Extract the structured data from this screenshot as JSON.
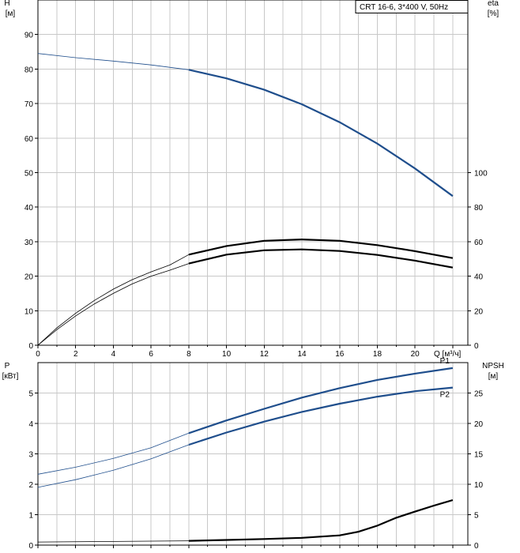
{
  "chart_data": [
    {
      "type": "line",
      "title": "CRT 16-6, 3*400 V, 50Hz",
      "xlabel": "Q [м³/ч]",
      "xlim": [
        0,
        22.8
      ],
      "x_ticks": [
        0,
        2,
        4,
        6,
        8,
        10,
        12,
        14,
        16,
        18,
        20
      ],
      "left_axis": {
        "label_line1": "H",
        "label_line2": "[м]",
        "ylim": [
          0,
          100
        ],
        "ticks": [
          0,
          10,
          20,
          30,
          40,
          50,
          60,
          70,
          80,
          90
        ]
      },
      "right_axis": {
        "label_line1": "eta",
        "label_line2": "[%]",
        "ylim": [
          0,
          200
        ],
        "ticks": [
          0,
          20,
          40,
          60,
          80,
          100
        ]
      },
      "grid": true,
      "series": [
        {
          "axis": "left",
          "color": "#1f4e8c",
          "points": [
            [
              0,
              84.5
            ],
            [
              2,
              83.3
            ],
            [
              4,
              82.3
            ],
            [
              6,
              81.2
            ],
            [
              8,
              79.8
            ],
            [
              10,
              77.3
            ],
            [
              12,
              74
            ],
            [
              14,
              69.8
            ],
            [
              16,
              64.6
            ],
            [
              18,
              58.4
            ],
            [
              20,
              51.2
            ],
            [
              22,
              43.2
            ]
          ]
        },
        {
          "axis": "right",
          "color": "#000000",
          "points": [
            [
              0,
              0
            ],
            [
              1,
              10
            ],
            [
              2,
              18.5
            ],
            [
              3,
              26
            ],
            [
              4,
              32.5
            ],
            [
              5,
              38
            ],
            [
              6,
              42.5
            ],
            [
              7,
              46.5
            ],
            [
              8,
              52.5
            ],
            [
              10,
              57.5
            ],
            [
              12,
              60.5
            ],
            [
              14,
              61.3
            ],
            [
              16,
              60.5
            ],
            [
              18,
              58
            ],
            [
              20,
              54.5
            ],
            [
              22,
              50.5
            ]
          ]
        },
        {
          "axis": "right",
          "color": "#000000",
          "points": [
            [
              0,
              0
            ],
            [
              1,
              9
            ],
            [
              2,
              17
            ],
            [
              3,
              24
            ],
            [
              4,
              30
            ],
            [
              5,
              35.5
            ],
            [
              6,
              40
            ],
            [
              7,
              43.5
            ],
            [
              8,
              47.3
            ],
            [
              10,
              52.5
            ],
            [
              12,
              55
            ],
            [
              14,
              55.5
            ],
            [
              16,
              54.6
            ],
            [
              18,
              52.3
            ],
            [
              20,
              49
            ],
            [
              22,
              45
            ]
          ]
        }
      ]
    },
    {
      "type": "line",
      "xlim": [
        0,
        22.8
      ],
      "left_axis": {
        "label_line1": "P",
        "label_line2": "[кВт]",
        "ylim": [
          0,
          6
        ],
        "ticks": [
          0,
          1,
          2,
          3,
          4,
          5
        ]
      },
      "right_axis": {
        "label_line1": "NPSH",
        "label_line2": "[м]",
        "ylim": [
          0,
          30
        ],
        "ticks": [
          0,
          5,
          10,
          15,
          20,
          25
        ]
      },
      "grid": true,
      "series": [
        {
          "name": "P1",
          "axis": "left",
          "color": "#1f4e8c",
          "points": [
            [
              0,
              2.33
            ],
            [
              2,
              2.56
            ],
            [
              4,
              2.85
            ],
            [
              6,
              3.2
            ],
            [
              8,
              3.68
            ],
            [
              10,
              4.1
            ],
            [
              12,
              4.48
            ],
            [
              14,
              4.85
            ],
            [
              16,
              5.16
            ],
            [
              18,
              5.43
            ],
            [
              20,
              5.64
            ],
            [
              22,
              5.82
            ]
          ]
        },
        {
          "name": "P2",
          "axis": "left",
          "color": "#1f4e8c",
          "points": [
            [
              0,
              1.9
            ],
            [
              2,
              2.15
            ],
            [
              4,
              2.46
            ],
            [
              6,
              2.84
            ],
            [
              8,
              3.3
            ],
            [
              10,
              3.7
            ],
            [
              12,
              4.06
            ],
            [
              14,
              4.38
            ],
            [
              16,
              4.65
            ],
            [
              18,
              4.88
            ],
            [
              20,
              5.06
            ],
            [
              22,
              5.18
            ]
          ]
        },
        {
          "axis": "right",
          "color": "#000000",
          "points": [
            [
              0,
              0.5
            ],
            [
              4,
              0.6
            ],
            [
              8,
              0.7
            ],
            [
              10,
              0.85
            ],
            [
              12,
              1.0
            ],
            [
              14,
              1.2
            ],
            [
              16,
              1.6
            ],
            [
              17,
              2.2
            ],
            [
              18,
              3.2
            ],
            [
              19,
              4.5
            ],
            [
              20,
              5.5
            ],
            [
              21,
              6.5
            ],
            [
              22,
              7.4
            ]
          ]
        }
      ]
    }
  ]
}
